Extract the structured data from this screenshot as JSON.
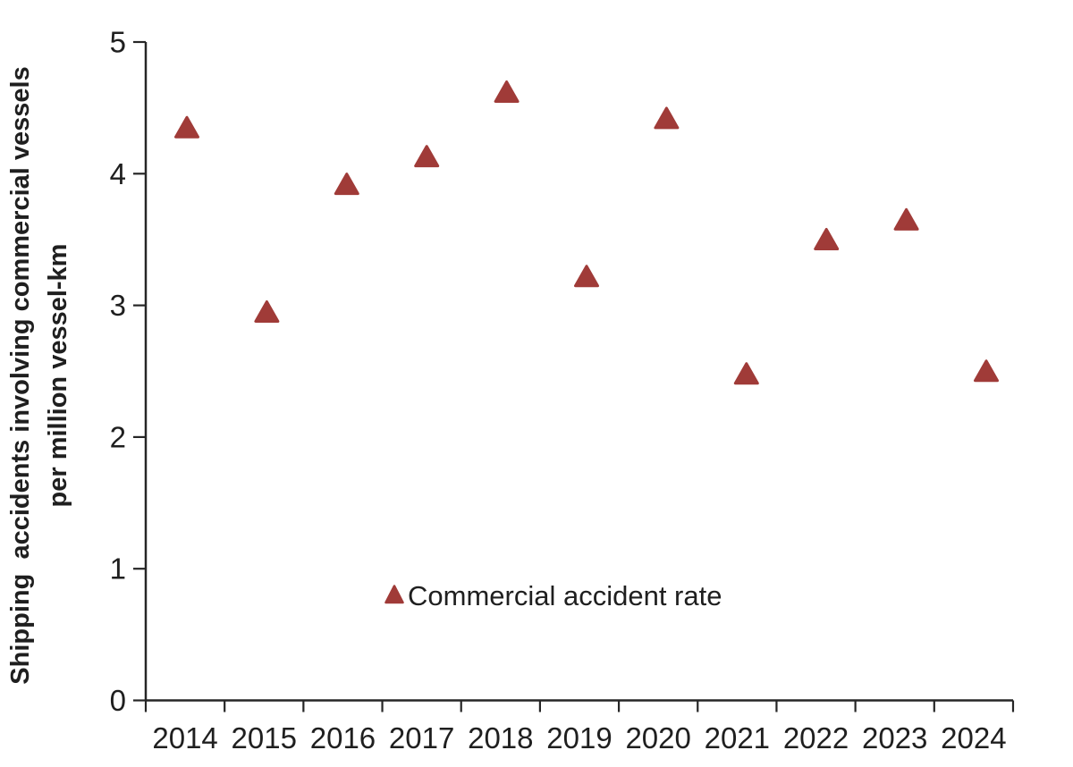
{
  "chart_data": {
    "type": "scatter",
    "title": "",
    "x": [
      2014,
      2015,
      2016,
      2017,
      2018,
      2019,
      2020,
      2021,
      2022,
      2023,
      2024
    ],
    "series": [
      {
        "name": "Commercial accident rate",
        "marker": "triangle-up",
        "color": "#a03b38",
        "values": [
          4.35,
          2.95,
          3.92,
          4.13,
          4.62,
          3.22,
          4.42,
          2.48,
          3.5,
          3.65,
          2.5
        ]
      }
    ],
    "xlabel": "",
    "ylabel_lines": [
      "Shipping  accidents involving commercial vessels",
      "per million vessel-km"
    ],
    "ylim": [
      0,
      5
    ],
    "yticks": [
      0,
      1,
      2,
      3,
      4,
      5
    ],
    "grid": false,
    "legend": {
      "position": "inside-bottom-center"
    },
    "colors": {
      "marker": "#a03b38",
      "axis": "#262626",
      "text": "#1f1f1f",
      "background": "#ffffff"
    }
  }
}
